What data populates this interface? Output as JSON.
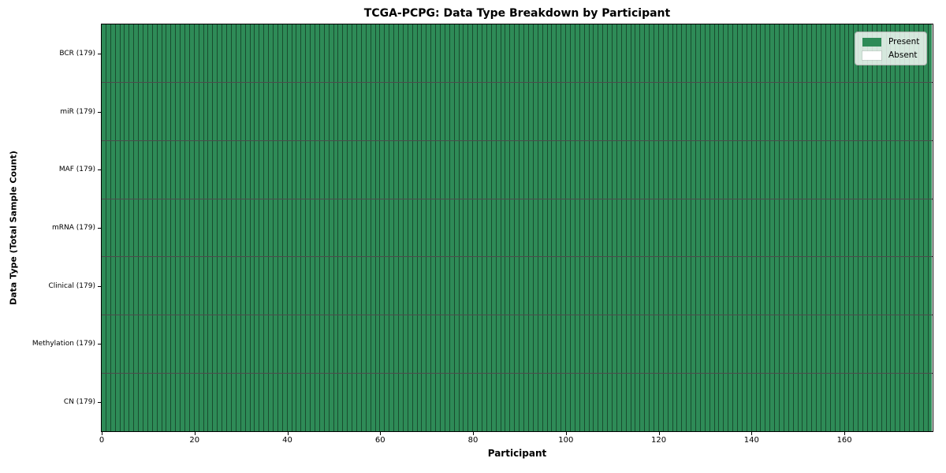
{
  "chart_data": {
    "type": "heatmap",
    "title": "TCGA-PCPG: Data Type Breakdown by Participant",
    "xlabel": "Participant",
    "ylabel": "Data Type (Total Sample Count)",
    "x_range": [
      0,
      179
    ],
    "n_participants": 179,
    "x_ticks": [
      0,
      20,
      40,
      60,
      80,
      100,
      120,
      140,
      160
    ],
    "rows": [
      {
        "label": "BCR (179)",
        "data_type": "BCR",
        "total_samples": 179,
        "present_count": 179,
        "absent_count": 0
      },
      {
        "label": "miR (179)",
        "data_type": "miR",
        "total_samples": 179,
        "present_count": 179,
        "absent_count": 0
      },
      {
        "label": "MAF (179)",
        "data_type": "MAF",
        "total_samples": 179,
        "present_count": 179,
        "absent_count": 0
      },
      {
        "label": "mRNA (179)",
        "data_type": "mRNA",
        "total_samples": 179,
        "present_count": 179,
        "absent_count": 0
      },
      {
        "label": "Clinical (179)",
        "data_type": "Clinical",
        "total_samples": 179,
        "present_count": 179,
        "absent_count": 0
      },
      {
        "label": "Methylation (179)",
        "data_type": "Methylation",
        "total_samples": 179,
        "present_count": 179,
        "absent_count": 0
      },
      {
        "label": "CN (179)",
        "data_type": "CN",
        "total_samples": 179,
        "present_count": 179,
        "absent_count": 0
      }
    ],
    "legend": [
      {
        "label": "Present",
        "color": "#2e8b57"
      },
      {
        "label": "Absent",
        "color": "#ffffff"
      }
    ],
    "legend_position": "upper right",
    "grid": "cell-edges",
    "colors": {
      "present": "#2e8b57",
      "absent": "#ffffff",
      "cell_edge": "rgba(0,0,0,0.45)",
      "row_separator": "rgba(0,0,0,0.7)",
      "plot_border": "#000000"
    }
  }
}
